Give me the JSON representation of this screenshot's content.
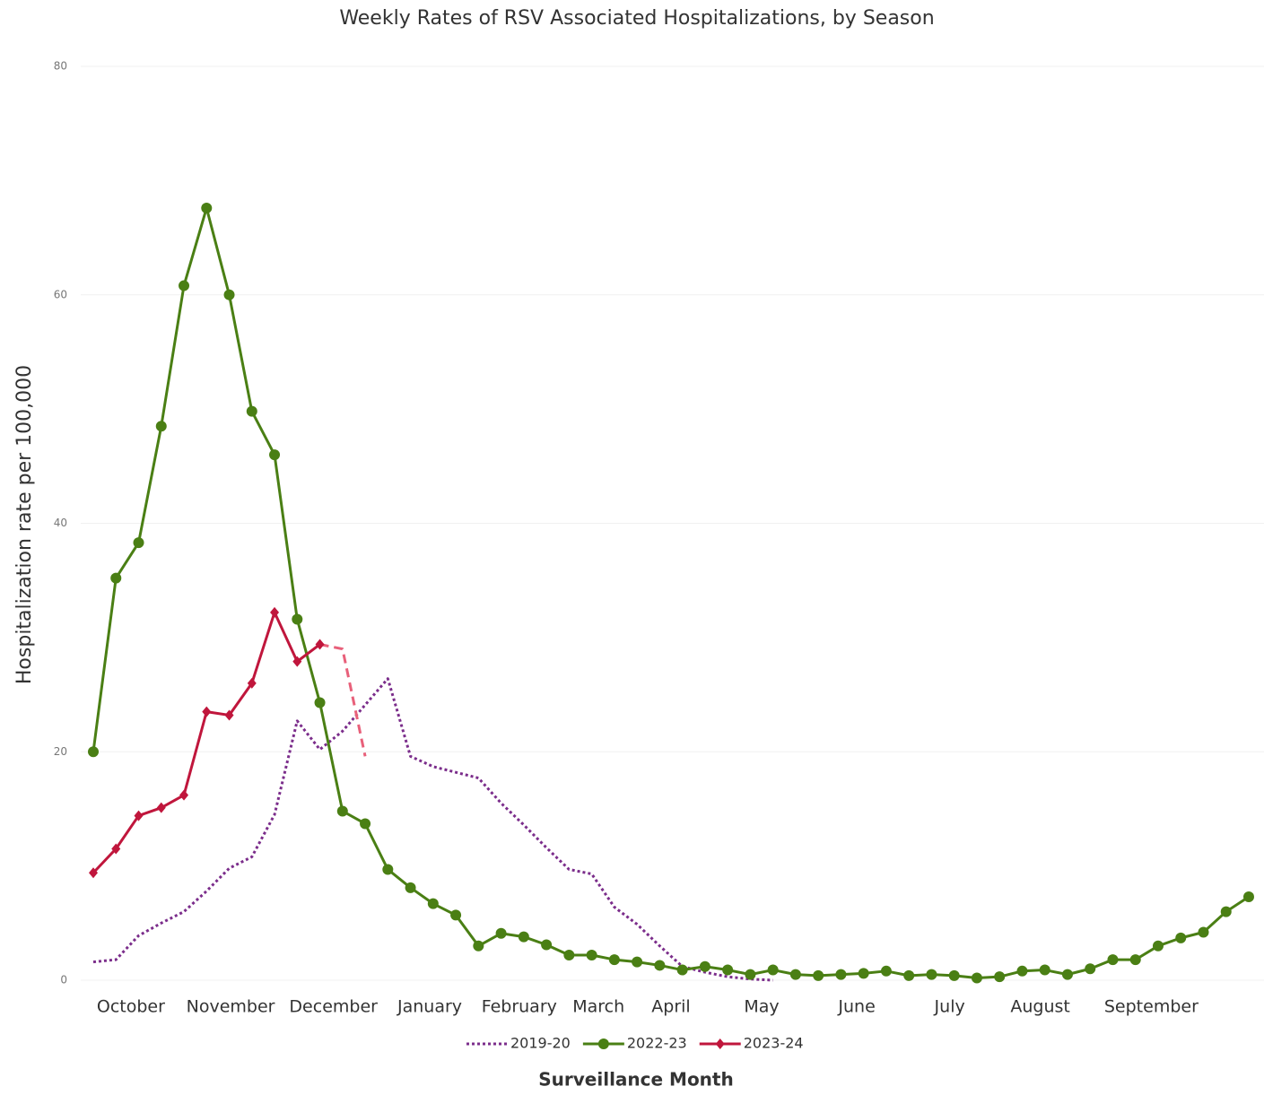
{
  "chart_data": {
    "type": "line",
    "title": "Weekly Rates of RSV Associated Hospitalizations, by Season",
    "x_label": "Surveillance Month",
    "y_label": "Hospitalization rate per 100,000",
    "xlim": [
      0,
      51
    ],
    "xticks": [
      {
        "value": 1.66,
        "label": "October"
      },
      {
        "value": 6.06,
        "label": "November"
      },
      {
        "value": 10.6,
        "label": "December"
      },
      {
        "value": 14.85,
        "label": "January"
      },
      {
        "value": 18.8,
        "label": "February"
      },
      {
        "value": 22.3,
        "label": "March"
      },
      {
        "value": 25.5,
        "label": "April"
      },
      {
        "value": 29.5,
        "label": "May"
      },
      {
        "value": 33.7,
        "label": "June"
      },
      {
        "value": 37.8,
        "label": "July"
      },
      {
        "value": 41.8,
        "label": "August"
      },
      {
        "value": 46.7,
        "label": "September"
      }
    ],
    "ylim": [
      0,
      80
    ],
    "yticks": [
      0,
      20,
      40,
      60,
      80
    ],
    "grid": true,
    "legend": "bottom",
    "series": [
      {
        "name": "2019-20",
        "color": "#7b2d8b",
        "line_style": "dotted",
        "marker": "none",
        "values": [
          1.6,
          1.8,
          3.9,
          5.0,
          6.0,
          7.8,
          9.8,
          10.8,
          14.5,
          22.7,
          20.2,
          21.8,
          24.1,
          26.4,
          19.6,
          18.7,
          18.2,
          17.7,
          15.5,
          13.6,
          11.6,
          9.7,
          9.3,
          6.4,
          4.9,
          3.0,
          1.2,
          0.7,
          0.3,
          0.1,
          0,
          null,
          null,
          null,
          null,
          null,
          null,
          null,
          null,
          null,
          null,
          null,
          null,
          null,
          null,
          null,
          null,
          null,
          null,
          null,
          null,
          null
        ]
      },
      {
        "name": "2022-23",
        "color": "#4a7f14",
        "line_style": "solid",
        "marker": "circle",
        "values": [
          20,
          35.2,
          38.3,
          48.5,
          60.8,
          67.6,
          60.0,
          49.8,
          46.0,
          31.6,
          24.3,
          14.8,
          13.7,
          9.7,
          8.1,
          6.7,
          5.7,
          3.0,
          4.1,
          3.8,
          3.1,
          2.2,
          2.2,
          1.8,
          1.6,
          1.3,
          0.9,
          1.2,
          0.9,
          0.5,
          0.9,
          0.5,
          0.4,
          0.5,
          0.6,
          0.8,
          0.4,
          0.5,
          0.4,
          0.2,
          0.3,
          0.8,
          0.9,
          0.5,
          1.0,
          1.8,
          1.8,
          3.0,
          3.7,
          4.2,
          6.0,
          7.3
        ]
      },
      {
        "name": "2023-24",
        "color": "#c0163c",
        "line_style": "solid",
        "marker": "diamond",
        "dashed_from": 10,
        "dashed_color": "#e8607a",
        "values": [
          9.4,
          11.5,
          14.4,
          15.1,
          16.2,
          23.5,
          23.2,
          26.0,
          32.2,
          27.9,
          29.4,
          29.0,
          19.6,
          null,
          null,
          null,
          null,
          null,
          null,
          null,
          null,
          null,
          null,
          null,
          null,
          null,
          null,
          null,
          null,
          null,
          null,
          null,
          null,
          null,
          null,
          null,
          null,
          null,
          null,
          null,
          null,
          null,
          null,
          null,
          null,
          null,
          null,
          null,
          null,
          null,
          null,
          null
        ]
      }
    ]
  }
}
